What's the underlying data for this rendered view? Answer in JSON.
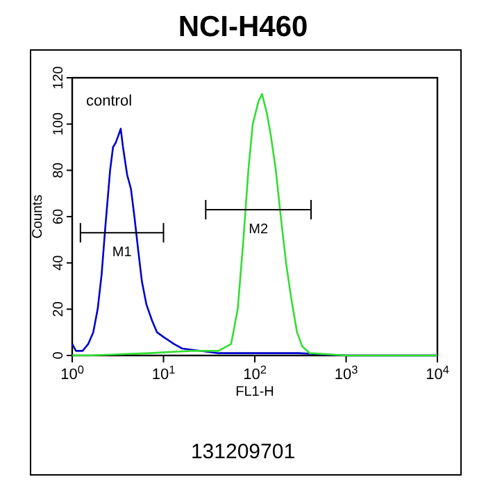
{
  "chart_data": {
    "type": "line",
    "title": "NCI-H460",
    "xlabel": "FL1-H",
    "ylabel": "Counts",
    "log": "x",
    "xlim": [
      1,
      10000
    ],
    "xticks": [
      {
        "value": 1,
        "label": "10$^{0}$"
      },
      {
        "value": 10,
        "label": "10$^{1}$"
      },
      {
        "value": 100,
        "label": "10$^{2}$"
      },
      {
        "value": 1000,
        "label": "10$^{3}$"
      },
      {
        "value": 10000,
        "label": "10$^{4}$"
      }
    ],
    "ylim": [
      0,
      120
    ],
    "yticks": [
      0,
      20,
      40,
      60,
      80,
      100,
      120
    ],
    "grid": false,
    "marker": "none",
    "line_style": "solid",
    "annotations": [
      "control",
      "131209701"
    ],
    "series": [
      {
        "color": "#0000cc",
        "x": [
          1,
          1.1,
          1.3,
          1.5,
          1.7,
          1.9,
          2.1,
          2.3,
          2.6,
          2.8,
          3,
          3.2,
          3.4,
          3.6,
          4,
          4.4,
          4.8,
          5.3,
          5.8,
          6.5,
          7.5,
          8.5,
          10,
          13,
          16,
          25,
          40,
          100,
          300,
          1000,
          10000
        ],
        "values": [
          5,
          2,
          2,
          5,
          10,
          20,
          35,
          55,
          80,
          90,
          92,
          95,
          98,
          90,
          78,
          72,
          60,
          45,
          32,
          22,
          15,
          10,
          8,
          5,
          3,
          2,
          1,
          1,
          1,
          0,
          0
        ]
      },
      {
        "color": "#33dd33",
        "x": [
          1,
          1.5,
          7,
          20,
          40,
          55,
          65,
          75,
          85,
          95,
          110,
          120,
          135,
          150,
          170,
          190,
          220,
          250,
          290,
          330,
          400,
          1000,
          10000
        ],
        "values": [
          0,
          0,
          1,
          2,
          2,
          5,
          20,
          50,
          80,
          100,
          110,
          113,
          105,
          95,
          80,
          62,
          40,
          25,
          10,
          4,
          1,
          0,
          0
        ]
      },
      {
        "name": "M1",
        "type": "line",
        "color": "#000000",
        "x": [
          1.23,
          10
        ],
        "values": [
          53,
          53
        ]
      },
      {
        "name": "M2",
        "type": "line",
        "color": "#000000",
        "x": [
          29,
          413
        ],
        "values": [
          63,
          63
        ]
      }
    ]
  }
}
